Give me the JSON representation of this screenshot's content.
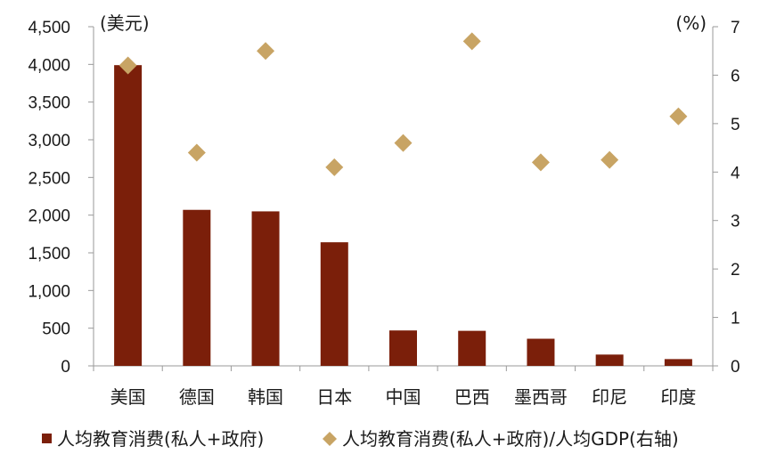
{
  "chart_data": {
    "type": "bar",
    "left_unit": "(美元)",
    "right_unit": "(%)",
    "categories": [
      "美国",
      "德国",
      "韩国",
      "日本",
      "中国",
      "巴西",
      "墨西哥",
      "印尼",
      "印度"
    ],
    "series": [
      {
        "name": "人均教育消费(私人+政府)",
        "type": "bar",
        "axis": "left",
        "color": "#7b1f0a",
        "values": [
          3990,
          2070,
          2050,
          1640,
          470,
          465,
          360,
          150,
          90
        ]
      },
      {
        "name": "人均教育消费(私人+政府)/人均GDP(右轴)",
        "type": "scatter",
        "marker": "diamond",
        "axis": "right",
        "color": "#c8a464",
        "values": [
          6.2,
          4.4,
          6.5,
          4.1,
          4.6,
          6.7,
          4.2,
          4.25,
          5.15
        ]
      }
    ],
    "y_left": {
      "min": 0,
      "max": 4500,
      "ticks": [
        "0",
        "500",
        "1,000",
        "1,500",
        "2,000",
        "2,500",
        "3,000",
        "3,500",
        "4,000",
        "4,500"
      ]
    },
    "y_right": {
      "min": 0,
      "max": 7,
      "ticks": [
        "0",
        "1",
        "2",
        "3",
        "4",
        "5",
        "6",
        "7"
      ]
    },
    "grid": false,
    "legend_position": "bottom"
  }
}
